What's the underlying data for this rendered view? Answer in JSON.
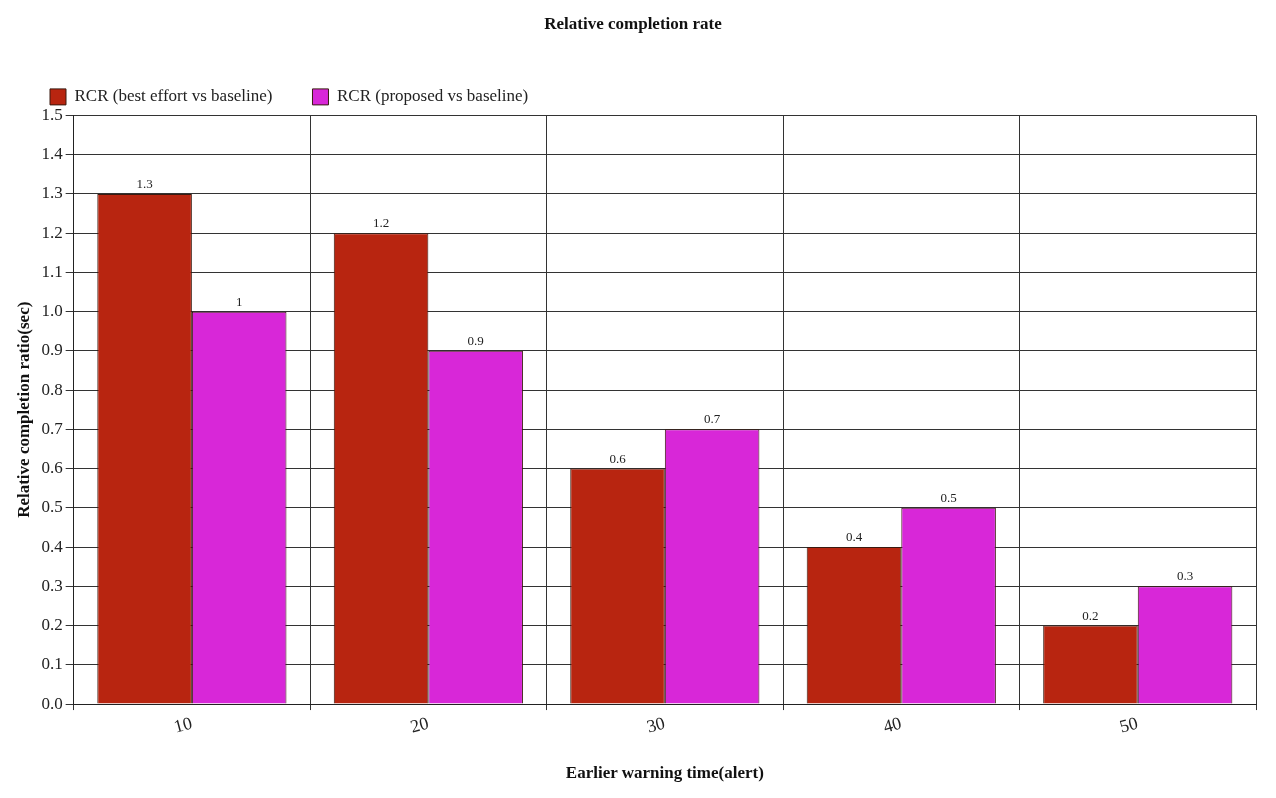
{
  "chart_data": {
    "type": "bar",
    "title": "Relative completion rate",
    "xlabel": "Earlier warning time(alert)",
    "ylabel": "Relative completion ratio(sec)",
    "categories": [
      "10",
      "20",
      "30",
      "40",
      "50"
    ],
    "series": [
      {
        "name": "RCR (best effort vs baseline)",
        "color": "#b82510",
        "values": [
          1.3,
          1.2,
          0.6,
          0.4,
          0.2
        ]
      },
      {
        "name": "RCR (proposed vs baseline)",
        "color": "#d827d8",
        "values": [
          1,
          0.9,
          0.7,
          0.5,
          0.3
        ]
      }
    ],
    "ylim": [
      0,
      1.5
    ],
    "yticks": [
      {
        "value": 0,
        "label": "0.0"
      },
      0.1,
      0.2,
      0.3,
      0.4,
      0.5,
      0.6,
      0.7,
      0.8,
      0.9,
      {
        "value": 1,
        "label": "1.0"
      },
      1.1,
      1.2,
      1.3,
      1.4,
      1.5
    ],
    "grid": true,
    "legend": "top left",
    "data_labels": true
  }
}
